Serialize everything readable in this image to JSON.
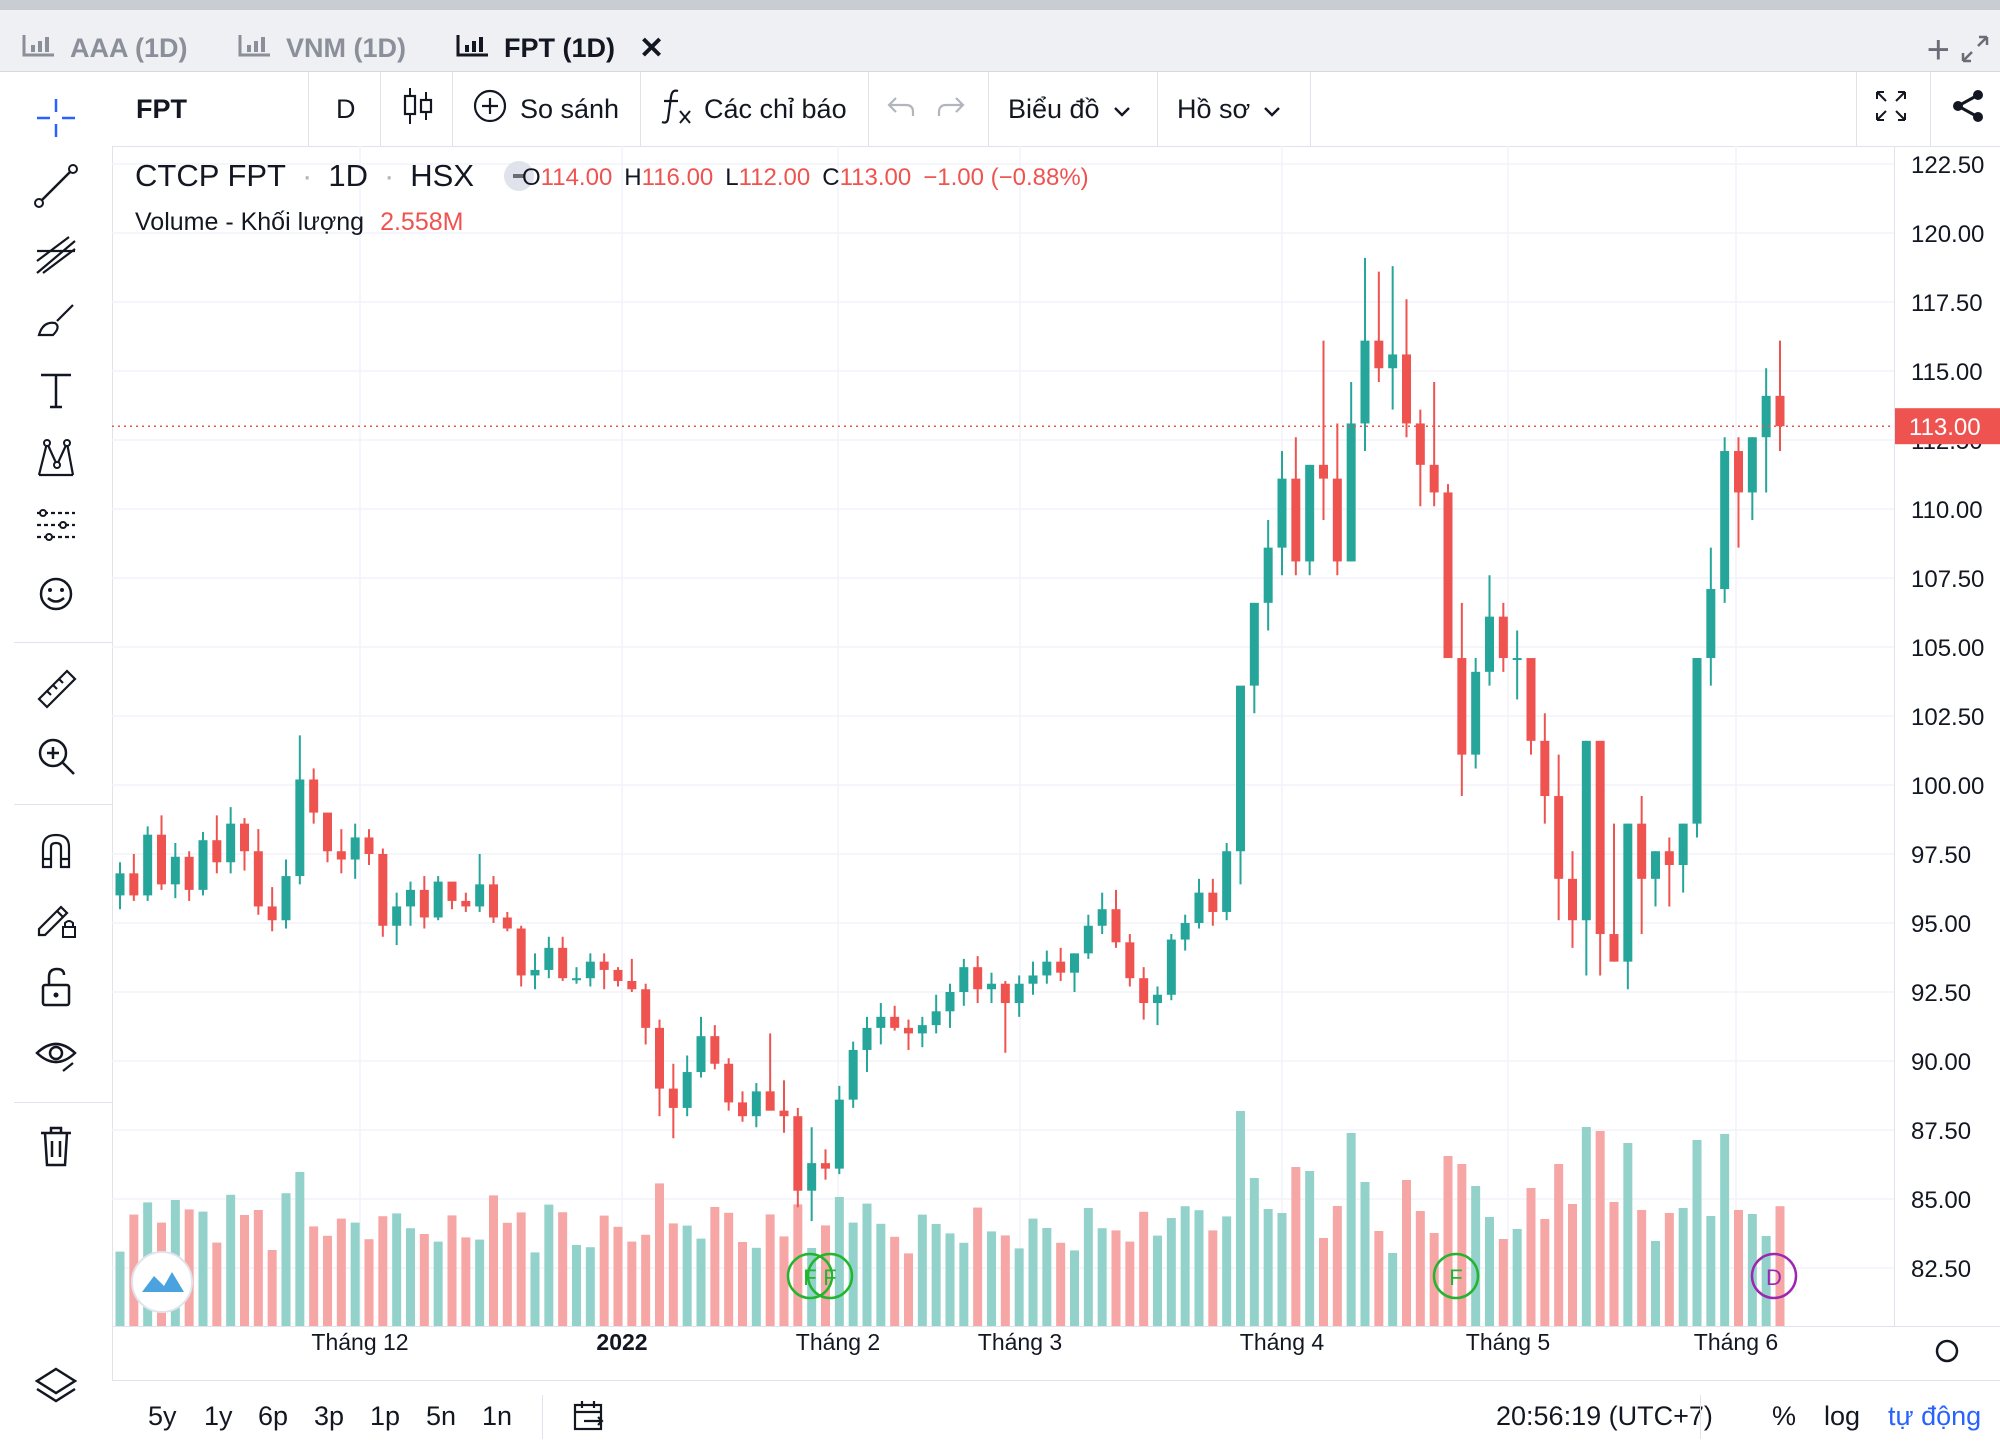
{
  "tabs": [
    {
      "label": "AAA (1D)",
      "active": false
    },
    {
      "label": "VNM (1D)",
      "active": false
    },
    {
      "label": "FPT (1D)",
      "active": true
    }
  ],
  "toolbar": {
    "symbol": "FPT",
    "interval": "D",
    "compare_label": "So sánh",
    "indicators_label": "Các chỉ báo",
    "chart_menu_label": "Biểu đồ",
    "profile_menu_label": "Hồ sơ"
  },
  "legend": {
    "name": "CTCP FPT",
    "interval": "1D",
    "exchange": "HSX",
    "open_key": "O",
    "open": "114.00",
    "high_key": "H",
    "high": "116.00",
    "low_key": "L",
    "low": "112.00",
    "close_key": "C",
    "close": "113.00",
    "change": "−1.00 (−0.88%)",
    "volume_label": "Volume - Khối lượng",
    "volume_value": "2.558M"
  },
  "bottom": {
    "ranges": [
      "5y",
      "1y",
      "6p",
      "3p",
      "1p",
      "5n",
      "1n"
    ],
    "time": "20:56:19 (UTC+7)",
    "percent": "%",
    "log": "log",
    "auto": "tự động"
  },
  "colors": {
    "up": "#26a69a",
    "down": "#ef5350",
    "accent": "#2962ff",
    "up_vol": "#93d2cb",
    "down_vol": "#f5a6a5"
  },
  "chart_data": {
    "type": "candlestick",
    "symbol": "FPT",
    "interval": "1D",
    "current_price_label": "113.00",
    "y_ticks": [
      "122.50",
      "120.00",
      "117.50",
      "115.00",
      "112.50",
      "110.00",
      "107.50",
      "105.00",
      "102.50",
      "100.00",
      "97.50",
      "95.00",
      "92.50",
      "90.00",
      "87.50",
      "85.00",
      "82.50"
    ],
    "x_labels": [
      "Tháng 12",
      "2022",
      "Tháng 2",
      "Tháng 3",
      "Tháng 4",
      "Tháng 5",
      "Tháng 6"
    ],
    "ohlc_approx": [
      [
        96.0,
        97.2,
        95.5,
        96.8
      ],
      [
        96.8,
        97.5,
        95.8,
        96.0
      ],
      [
        96.0,
        98.5,
        95.8,
        98.2
      ],
      [
        98.2,
        98.9,
        96.2,
        96.4
      ],
      [
        96.4,
        97.9,
        95.9,
        97.4
      ],
      [
        97.4,
        97.6,
        95.8,
        96.2
      ],
      [
        96.2,
        98.3,
        96.0,
        98.0
      ],
      [
        98.0,
        98.9,
        96.8,
        97.2
      ],
      [
        97.2,
        99.2,
        96.8,
        98.6
      ],
      [
        98.6,
        98.8,
        96.9,
        97.6
      ],
      [
        97.6,
        98.4,
        95.3,
        95.6
      ],
      [
        95.6,
        96.3,
        94.7,
        95.1
      ],
      [
        95.1,
        97.3,
        94.8,
        96.7
      ],
      [
        96.7,
        101.8,
        96.4,
        100.2
      ],
      [
        100.2,
        100.6,
        98.6,
        99.0
      ],
      [
        99.0,
        98.9,
        97.2,
        97.6
      ],
      [
        97.6,
        98.4,
        96.8,
        97.3
      ],
      [
        97.3,
        98.6,
        96.6,
        98.1
      ],
      [
        98.1,
        98.4,
        97.1,
        97.5
      ],
      [
        97.5,
        97.7,
        94.5,
        94.9
      ],
      [
        94.9,
        96.1,
        94.2,
        95.6
      ],
      [
        95.6,
        96.5,
        94.9,
        96.2
      ],
      [
        96.2,
        96.7,
        94.8,
        95.2
      ],
      [
        95.2,
        96.7,
        95.1,
        96.5
      ],
      [
        96.5,
        96.4,
        95.5,
        95.8
      ],
      [
        95.8,
        96.1,
        95.4,
        95.6
      ],
      [
        95.6,
        97.5,
        95.4,
        96.4
      ],
      [
        96.4,
        96.7,
        95.0,
        95.2
      ],
      [
        95.2,
        95.4,
        94.7,
        94.8
      ],
      [
        94.8,
        94.9,
        92.7,
        93.1
      ],
      [
        93.1,
        93.9,
        92.6,
        93.3
      ],
      [
        93.3,
        94.5,
        93.0,
        94.1
      ],
      [
        94.1,
        94.5,
        92.9,
        93.0
      ],
      [
        93.0,
        93.4,
        92.8,
        93.0
      ],
      [
        93.0,
        93.9,
        92.7,
        93.6
      ],
      [
        93.6,
        93.9,
        92.6,
        93.3
      ],
      [
        93.3,
        93.4,
        92.7,
        92.9
      ],
      [
        92.9,
        93.7,
        92.5,
        92.6
      ],
      [
        92.6,
        92.8,
        90.6,
        91.2
      ],
      [
        91.2,
        91.5,
        88.0,
        89.0
      ],
      [
        89.0,
        89.9,
        87.2,
        88.3
      ],
      [
        88.3,
        90.2,
        88.0,
        89.6
      ],
      [
        89.6,
        91.6,
        89.4,
        90.9
      ],
      [
        90.9,
        91.3,
        89.7,
        89.9
      ],
      [
        89.9,
        90.1,
        88.2,
        88.5
      ],
      [
        88.5,
        88.9,
        87.8,
        88.0
      ],
      [
        88.0,
        89.2,
        87.6,
        88.9
      ],
      [
        88.9,
        91.0,
        88.7,
        88.2
      ],
      [
        88.2,
        89.3,
        87.4,
        88.0
      ],
      [
        88.0,
        88.3,
        84.7,
        85.3
      ],
      [
        85.3,
        87.6,
        84.2,
        86.3
      ],
      [
        86.3,
        86.8,
        85.7,
        86.1
      ],
      [
        86.1,
        89.1,
        85.9,
        88.6
      ],
      [
        88.6,
        90.7,
        88.3,
        90.4
      ],
      [
        90.4,
        91.6,
        89.6,
        91.2
      ],
      [
        91.2,
        92.1,
        90.6,
        91.6
      ],
      [
        91.6,
        92.0,
        91.1,
        91.2
      ],
      [
        91.2,
        91.5,
        90.4,
        91.0
      ],
      [
        91.0,
        91.6,
        90.5,
        91.3
      ],
      [
        91.3,
        92.4,
        91.0,
        91.8
      ],
      [
        91.8,
        92.8,
        91.2,
        92.5
      ],
      [
        92.5,
        93.7,
        92.0,
        93.4
      ],
      [
        93.4,
        93.8,
        92.1,
        92.6
      ],
      [
        92.6,
        93.2,
        92.1,
        92.8
      ],
      [
        92.8,
        92.9,
        90.3,
        92.1
      ],
      [
        92.1,
        93.1,
        91.6,
        92.8
      ],
      [
        92.8,
        93.6,
        92.4,
        93.1
      ],
      [
        93.1,
        94.0,
        92.8,
        93.6
      ],
      [
        93.6,
        94.1,
        92.9,
        93.2
      ],
      [
        93.2,
        93.9,
        92.5,
        93.9
      ],
      [
        93.9,
        95.3,
        93.7,
        94.9
      ],
      [
        94.9,
        96.1,
        94.6,
        95.5
      ],
      [
        95.5,
        96.2,
        94.1,
        94.3
      ],
      [
        94.3,
        94.6,
        92.7,
        93.0
      ],
      [
        93.0,
        93.4,
        91.5,
        92.1
      ],
      [
        92.1,
        92.7,
        91.3,
        92.4
      ],
      [
        92.4,
        94.6,
        92.2,
        94.4
      ],
      [
        94.4,
        95.3,
        94.0,
        95.0
      ],
      [
        95.0,
        96.6,
        94.8,
        96.1
      ],
      [
        96.1,
        96.6,
        94.9,
        95.4
      ],
      [
        95.4,
        97.9,
        95.1,
        97.6
      ],
      [
        97.6,
        98.6,
        96.4,
        103.6
      ],
      [
        103.6,
        106.6,
        102.6,
        106.6
      ],
      [
        106.6,
        109.6,
        105.6,
        108.6
      ],
      [
        108.6,
        112.1,
        107.6,
        111.1
      ],
      [
        111.1,
        112.6,
        107.6,
        108.1
      ],
      [
        108.1,
        111.6,
        107.6,
        111.6
      ],
      [
        111.6,
        116.1,
        109.6,
        111.1
      ],
      [
        111.1,
        113.1,
        107.6,
        108.1
      ],
      [
        108.1,
        114.6,
        108.1,
        113.1
      ],
      [
        113.1,
        119.1,
        112.1,
        116.1
      ],
      [
        116.1,
        118.6,
        114.6,
        115.1
      ],
      [
        115.1,
        118.8,
        113.6,
        115.6
      ],
      [
        115.6,
        117.6,
        112.6,
        113.1
      ],
      [
        113.1,
        113.6,
        110.1,
        111.6
      ],
      [
        111.6,
        114.6,
        110.1,
        110.6
      ],
      [
        110.6,
        110.9,
        104.6,
        104.6
      ],
      [
        104.6,
        106.6,
        99.6,
        101.1
      ],
      [
        101.1,
        104.6,
        100.6,
        104.1
      ],
      [
        104.1,
        107.6,
        103.6,
        106.1
      ],
      [
        106.1,
        106.6,
        104.1,
        104.6
      ],
      [
        104.6,
        105.6,
        103.1,
        104.6
      ],
      [
        104.6,
        104.1,
        101.1,
        101.6
      ],
      [
        101.6,
        102.6,
        98.6,
        99.6
      ],
      [
        99.6,
        101.1,
        95.1,
        96.6
      ],
      [
        96.6,
        97.6,
        94.1,
        95.1
      ],
      [
        95.1,
        101.6,
        93.1,
        101.6
      ],
      [
        101.6,
        101.6,
        93.1,
        94.6
      ],
      [
        94.6,
        98.6,
        93.6,
        93.6
      ],
      [
        93.6,
        98.6,
        92.6,
        98.6
      ],
      [
        98.6,
        99.6,
        94.6,
        96.6
      ],
      [
        96.6,
        97.6,
        95.6,
        97.6
      ],
      [
        97.6,
        98.1,
        95.6,
        97.1
      ],
      [
        97.1,
        98.6,
        96.1,
        98.6
      ],
      [
        98.6,
        104.6,
        98.1,
        104.6
      ],
      [
        104.6,
        108.6,
        103.6,
        107.1
      ],
      [
        107.1,
        112.6,
        106.6,
        112.1
      ],
      [
        112.1,
        112.6,
        108.6,
        110.6
      ],
      [
        110.6,
        112.6,
        109.6,
        112.6
      ],
      [
        112.6,
        115.1,
        110.6,
        114.1
      ],
      [
        114.1,
        116.1,
        112.1,
        113.0
      ]
    ]
  }
}
